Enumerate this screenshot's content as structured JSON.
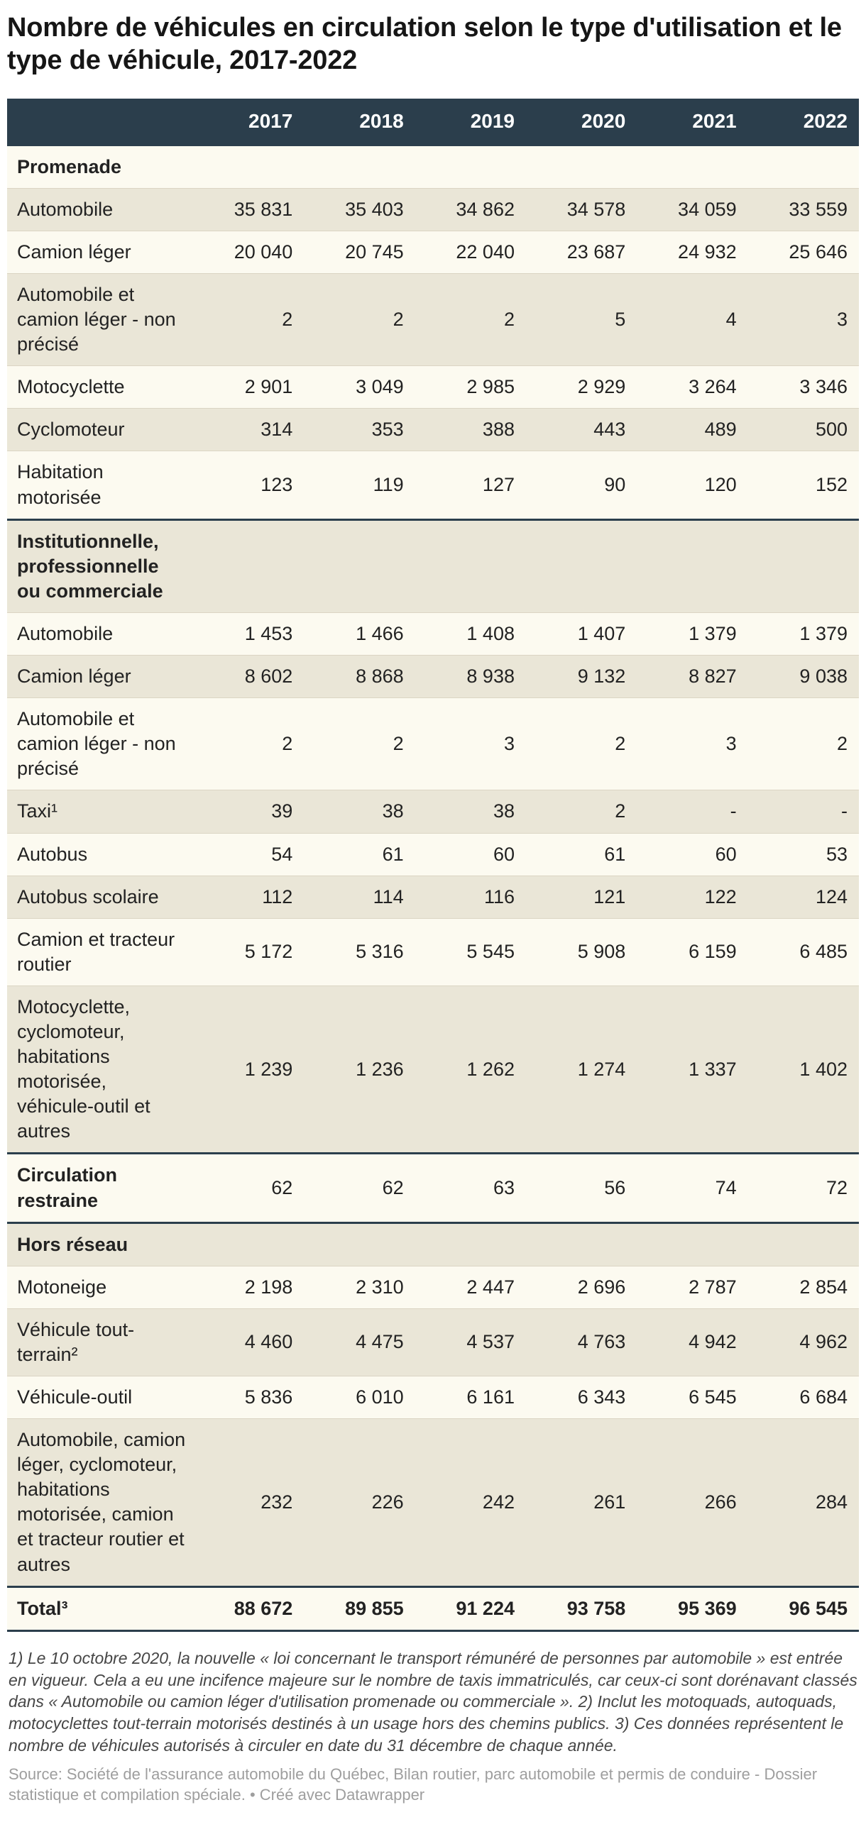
{
  "colors": {
    "header_bg": "#2b3e4c",
    "row_cream": "#fcfaf0",
    "row_beige": "#eae6d7",
    "border_dark": "#2b3e4c",
    "border_light": "#dbd5c4",
    "title_color": "#161616",
    "text_color": "#222222",
    "header_text": "#ffffff",
    "footnote_color": "#464646",
    "source_color": "#9e9e9e"
  },
  "chart_data": {
    "type": "table",
    "title": "Nombre de véhicules en circulation selon le type d'utilisation et le type de véhicule, 2017-2022",
    "columns": [
      "2017",
      "2018",
      "2019",
      "2020",
      "2021",
      "2022"
    ],
    "rows": [
      {
        "type": "section",
        "label": "Promenade",
        "values": null
      },
      {
        "type": "data",
        "label": "Automobile",
        "values": [
          "35 831",
          "35 403",
          "34 862",
          "34 578",
          "34 059",
          "33 559"
        ]
      },
      {
        "type": "data",
        "label": "Camion léger",
        "values": [
          "20 040",
          "20 745",
          "22 040",
          "23 687",
          "24 932",
          "25 646"
        ]
      },
      {
        "type": "data",
        "label": "Automobile et camion léger - non précisé",
        "values": [
          "2",
          "2",
          "2",
          "5",
          "4",
          "3"
        ]
      },
      {
        "type": "data",
        "label": "Motocyclette",
        "values": [
          "2 901",
          "3 049",
          "2 985",
          "2 929",
          "3 264",
          "3 346"
        ]
      },
      {
        "type": "data",
        "label": "Cyclomoteur",
        "values": [
          "314",
          "353",
          "388",
          "443",
          "489",
          "500"
        ]
      },
      {
        "type": "data",
        "label": "Habitation motorisée",
        "values": [
          "123",
          "119",
          "127",
          "90",
          "120",
          "152"
        ]
      },
      {
        "type": "section",
        "label": "Institutionnelle, professionnelle ou commerciale",
        "values": null
      },
      {
        "type": "data",
        "label": "Automobile",
        "values": [
          "1 453",
          "1 466",
          "1 408",
          "1 407",
          "1 379",
          "1 379"
        ]
      },
      {
        "type": "data",
        "label": "Camion léger",
        "values": [
          "8 602",
          "8 868",
          "8 938",
          "9 132",
          "8 827",
          "9 038"
        ]
      },
      {
        "type": "data",
        "label": "Automobile et camion léger - non précisé",
        "values": [
          "2",
          "2",
          "3",
          "2",
          "3",
          "2"
        ]
      },
      {
        "type": "data",
        "label": "Taxi¹",
        "values": [
          "39",
          "38",
          "38",
          "2",
          "-",
          "-"
        ]
      },
      {
        "type": "data",
        "label": "Autobus",
        "values": [
          "54",
          "61",
          "60",
          "61",
          "60",
          "53"
        ]
      },
      {
        "type": "data",
        "label": "Autobus scolaire",
        "values": [
          "112",
          "114",
          "116",
          "121",
          "122",
          "124"
        ]
      },
      {
        "type": "data",
        "label": "Camion et tracteur routier",
        "values": [
          "5 172",
          "5 316",
          "5 545",
          "5 908",
          "6 159",
          "6 485"
        ]
      },
      {
        "type": "data",
        "label": "Motocyclette, cyclomoteur, habitations motorisée, véhicule-outil et autres",
        "values": [
          "1 239",
          "1 236",
          "1 262",
          "1 274",
          "1 337",
          "1 402"
        ]
      },
      {
        "type": "section-values",
        "label": "Circulation restraine",
        "values": [
          "62",
          "62",
          "63",
          "56",
          "74",
          "72"
        ]
      },
      {
        "type": "section",
        "label": "Hors réseau",
        "values": null
      },
      {
        "type": "data",
        "label": "Motoneige",
        "values": [
          "2 198",
          "2 310",
          "2 447",
          "2 696",
          "2 787",
          "2 854"
        ]
      },
      {
        "type": "data",
        "label": "Véhicule tout-terrain²",
        "values": [
          "4 460",
          "4 475",
          "4 537",
          "4 763",
          "4 942",
          "4 962"
        ]
      },
      {
        "type": "data",
        "label": "Véhicule-outil",
        "values": [
          "5 836",
          "6 010",
          "6 161",
          "6 343",
          "6 545",
          "6 684"
        ]
      },
      {
        "type": "data",
        "label": "Automobile, camion léger, cyclomoteur, habitations motorisée, camion et tracteur routier et autres",
        "values": [
          "232",
          "226",
          "242",
          "261",
          "266",
          "284"
        ]
      },
      {
        "type": "total",
        "label": "Total³",
        "values": [
          "88 672",
          "89 855",
          "91 224",
          "93 758",
          "95 369",
          "96 545"
        ]
      }
    ],
    "footnotes": "1) Le 10 octobre 2020, la nouvelle « loi concernant le transport rémunéré de personnes par automobile » est entrée en vigueur. Cela a eu une incifence majeure sur le nombre de taxis immatriculés, car ceux-ci sont dorénavant classés dans « Automobile ou camion léger d'utilisation promenade ou commerciale ». 2) Inclut les motoquads, autoquads, motocyclettes tout-terrain motorisés destinés à un usage hors des chemins publics. 3) Ces données représentent le nombre de véhicules autorisés à circuler en date du 31 décembre de chaque année.",
    "source": "Source: Société de l'assurance automobile du Québec, Bilan routier, parc automobile et permis de conduire - Dossier statistique et compilation spéciale.",
    "separator": " • ",
    "attribution": "Créé avec Datawrapper"
  }
}
